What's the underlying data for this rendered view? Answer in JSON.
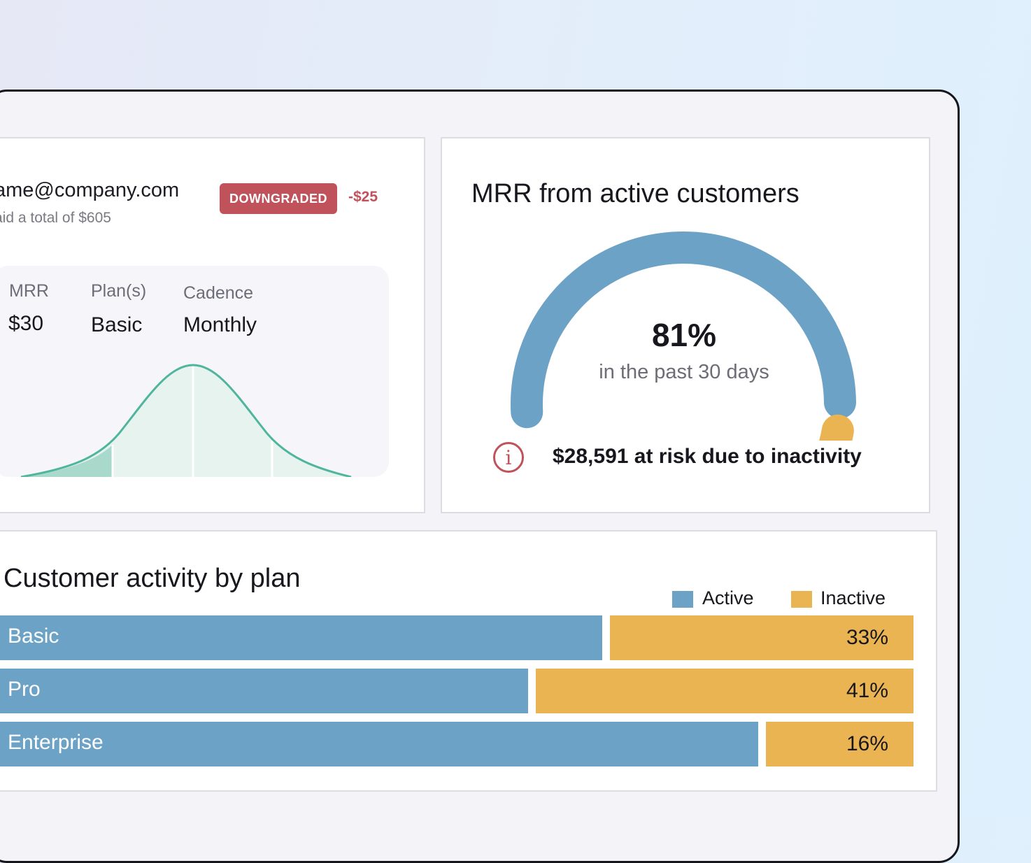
{
  "customer": {
    "email": "ame@company.com",
    "paid": "aid a total of $605",
    "badge": "DOWNGRADED",
    "delta": "-$25",
    "stats": [
      {
        "label": "MRR",
        "value": "$30"
      },
      {
        "label": "Plan(s)",
        "value": "Basic"
      },
      {
        "label": "Cadence",
        "value": "Monthly"
      }
    ]
  },
  "mrr": {
    "title": "MRR from active customers",
    "percent": "81%",
    "period": "in the past 30 days",
    "active_fraction": 0.81,
    "risk": "$28,591 at risk due to inactivity",
    "risk_icon": "info-icon"
  },
  "activity": {
    "title": "Customer activity by plan",
    "legend": [
      {
        "label": "Active",
        "color": "#6ba2c6"
      },
      {
        "label": "Inactive",
        "color": "#ebb452"
      }
    ]
  },
  "chart_data": {
    "type": "bar",
    "title": "Customer activity by plan",
    "categories": [
      "Basic",
      "Pro",
      "Enterprise"
    ],
    "series": [
      {
        "name": "Active",
        "values": [
          67,
          59,
          84
        ]
      },
      {
        "name": "Inactive",
        "values": [
          33,
          41,
          16
        ]
      }
    ],
    "value_labels": [
      "33%",
      "41%",
      "16%"
    ],
    "stacked": true,
    "legend": "top-right"
  },
  "colors": {
    "active": "#6ba2c6",
    "inactive": "#ebb452",
    "danger": "#c0525b",
    "curve": "#4fb59c"
  }
}
